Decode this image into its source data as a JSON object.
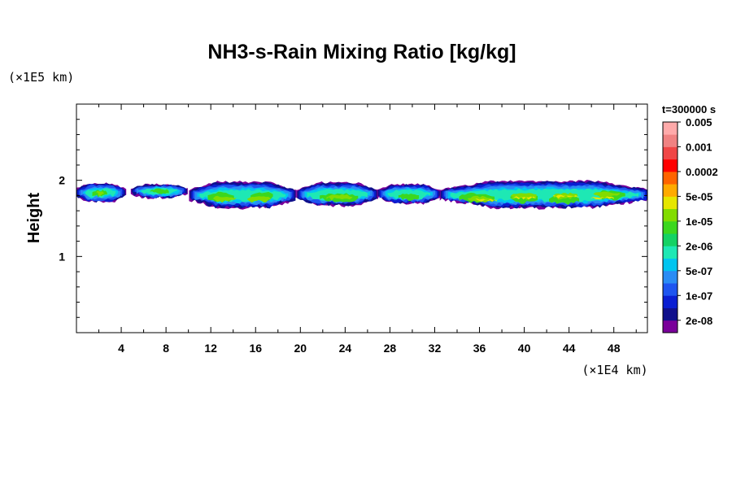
{
  "chart_data": {
    "type": "heatmap",
    "title": "NH3-s-Rain Mixing Ratio [kg/kg]",
    "ylabel": "Height",
    "x_unit": "(×1E4 km)",
    "y_unit": "(×1E5 km)",
    "time_label": "t=300000 s",
    "xlim": [
      0,
      51
    ],
    "ylim": [
      0,
      3
    ],
    "x_ticks": [
      4,
      8,
      12,
      16,
      20,
      24,
      28,
      32,
      36,
      40,
      44,
      48
    ],
    "x_tick_labels": [
      "4",
      "8",
      "12",
      "16",
      "20",
      "24",
      "28",
      "32",
      "36",
      "40",
      "44",
      "48"
    ],
    "x_minor_step": 2,
    "y_ticks": [
      1,
      2
    ],
    "y_tick_labels": [
      "1",
      "2"
    ],
    "y_minor_step": 0.2,
    "colorbar": {
      "colors": [
        "#7a009a",
        "#10108c",
        "#0a1ed2",
        "#1e55f0",
        "#2a8cf5",
        "#00c5f0",
        "#1ee8b4",
        "#14d264",
        "#3cd71e",
        "#82dc00",
        "#e6e600",
        "#ffaa00",
        "#ff6400",
        "#ff0000",
        "#f04646",
        "#f08282",
        "#ffaaaa"
      ],
      "labels": [
        "2e-08",
        "1e-07",
        "5e-07",
        "2e-06",
        "1e-05",
        "5e-05",
        "0.0002",
        "0.001",
        "0.005"
      ]
    },
    "cloud_segments": [
      {
        "x0": 0.0,
        "x1": 4.3,
        "y_top": 1.96,
        "y_bot": 1.72,
        "peak": 6
      },
      {
        "x0": 5.0,
        "x1": 9.8,
        "y_top": 1.95,
        "y_bot": 1.77,
        "peak": 5
      },
      {
        "x0": 10.2,
        "x1": 19.5,
        "y_top": 1.98,
        "y_bot": 1.64,
        "peak": 6
      },
      {
        "x0": 19.8,
        "x1": 26.8,
        "y_top": 1.97,
        "y_bot": 1.67,
        "peak": 6
      },
      {
        "x0": 27.0,
        "x1": 32.4,
        "y_top": 1.95,
        "y_bot": 1.7,
        "peak": 5
      },
      {
        "x0": 32.6,
        "x1": 51.0,
        "y_top": 1.99,
        "y_bot": 1.64,
        "peak": 7
      }
    ]
  }
}
